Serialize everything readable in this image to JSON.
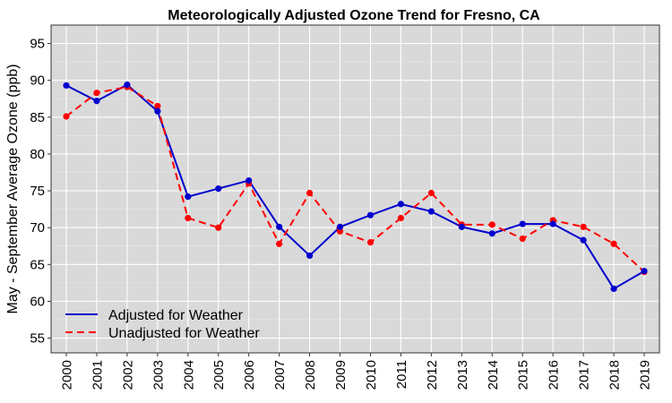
{
  "chart_data": {
    "type": "line",
    "title": "Meteorologically Adjusted Ozone Trend for Fresno, CA",
    "xlabel": "",
    "ylabel": "May - September Average Ozone (ppb)",
    "categories": [
      "2000",
      "2001",
      "2002",
      "2003",
      "2004",
      "2005",
      "2006",
      "2007",
      "2008",
      "2009",
      "2010",
      "2011",
      "2012",
      "2013",
      "2014",
      "2015",
      "2016",
      "2017",
      "2018",
      "2019"
    ],
    "yticks": [
      55,
      60,
      65,
      70,
      75,
      80,
      85,
      90,
      95
    ],
    "ylim": [
      53,
      97.5
    ],
    "grid": true,
    "legend_position": "bottom-left",
    "series": [
      {
        "name": "Adjusted for Weather",
        "color": "#0000cd",
        "line_style": "solid",
        "values": [
          89.3,
          87.2,
          89.4,
          85.8,
          74.2,
          75.3,
          76.4,
          70.1,
          66.2,
          70.1,
          71.7,
          73.2,
          72.2,
          70.1,
          69.2,
          70.5,
          70.5,
          68.3,
          61.7,
          64.1
        ]
      },
      {
        "name": "Unadjusted for Weather",
        "color": "#ff0000",
        "line_style": "dashed",
        "values": [
          85.1,
          88.3,
          89.1,
          86.5,
          71.3,
          70.0,
          76.0,
          67.8,
          74.7,
          69.5,
          68.0,
          71.3,
          74.7,
          70.4,
          70.4,
          68.5,
          71.0,
          70.1,
          67.8,
          64.0
        ]
      }
    ]
  }
}
